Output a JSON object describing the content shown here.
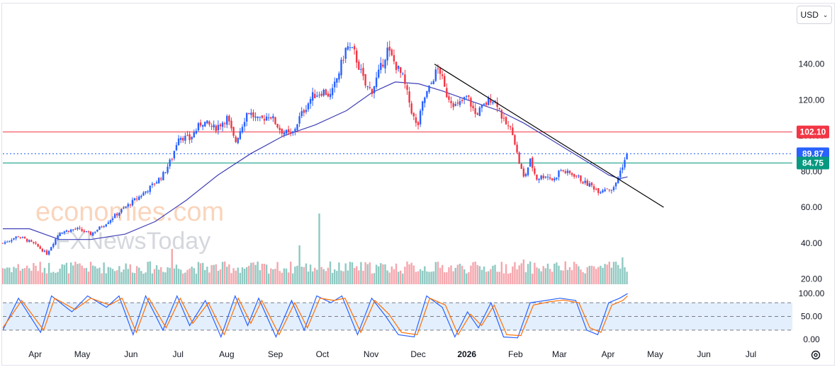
{
  "currency_selector": {
    "label": "USD"
  },
  "watermark": {
    "line1": "economies.com",
    "line2": "FXNewsToday"
  },
  "colors": {
    "up": "#2962ff",
    "down": "#f23645",
    "ma": "#3f3fb6",
    "trendline": "#000000",
    "resistance": "#f23645",
    "support": "#089981",
    "last_price": "#2962ff",
    "stoch_k": "#2962ff",
    "stoch_d": "#ff6d00",
    "stoch_band": "#e3effd",
    "volume_up": "#8fc9c2",
    "volume_down": "#f5a6ad"
  },
  "chart_data": [
    {
      "type": "candlestick",
      "title": "",
      "x_tick_labels": [
        "Apr",
        "May",
        "Jun",
        "Jul",
        "Aug",
        "Sep",
        "Oct",
        "Nov",
        "Dec",
        "2026",
        "Feb",
        "Mar",
        "Apr",
        "May",
        "Jun",
        "Jul"
      ],
      "x_range": [
        "2025-03-15",
        "2026-07-31"
      ],
      "y_tick_labels": [
        "20.00",
        "40.00",
        "60.00",
        "80.00",
        "100.00",
        "120.00",
        "140.00"
      ],
      "ylim": [
        17,
        160
      ],
      "grid": false,
      "close_path": [
        [
          "2025-03-15",
          40
        ],
        [
          "2025-03-25",
          44
        ],
        [
          "2025-04-05",
          39
        ],
        [
          "2025-04-12",
          34
        ],
        [
          "2025-04-20",
          46
        ],
        [
          "2025-05-01",
          48
        ],
        [
          "2025-05-10",
          45
        ],
        [
          "2025-05-18",
          50
        ],
        [
          "2025-05-25",
          55
        ],
        [
          "2025-06-01",
          60
        ],
        [
          "2025-06-10",
          66
        ],
        [
          "2025-06-18",
          72
        ],
        [
          "2025-06-25",
          78
        ],
        [
          "2025-07-01",
          88
        ],
        [
          "2025-07-05",
          100
        ],
        [
          "2025-07-12",
          98
        ],
        [
          "2025-07-20",
          108
        ],
        [
          "2025-07-28",
          104
        ],
        [
          "2025-08-05",
          110
        ],
        [
          "2025-08-10",
          96
        ],
        [
          "2025-08-18",
          114
        ],
        [
          "2025-08-25",
          108
        ],
        [
          "2025-09-01",
          112
        ],
        [
          "2025-09-08",
          103
        ],
        [
          "2025-09-15",
          100
        ],
        [
          "2025-09-20",
          110
        ],
        [
          "2025-09-28",
          122
        ],
        [
          "2025-10-05",
          125
        ],
        [
          "2025-10-10",
          122
        ],
        [
          "2025-10-15",
          135
        ],
        [
          "2025-10-20",
          150
        ],
        [
          "2025-10-25",
          146
        ],
        [
          "2025-11-01",
          128
        ],
        [
          "2025-11-05",
          125
        ],
        [
          "2025-11-10",
          136
        ],
        [
          "2025-11-15",
          148
        ],
        [
          "2025-11-20",
          140
        ],
        [
          "2025-11-25",
          132
        ],
        [
          "2025-11-28",
          122
        ],
        [
          "2025-12-01",
          112
        ],
        [
          "2025-12-04",
          104
        ],
        [
          "2025-12-08",
          120
        ],
        [
          "2025-12-12",
          127
        ],
        [
          "2025-12-15",
          134
        ],
        [
          "2025-12-18",
          138
        ],
        [
          "2025-12-22",
          124
        ],
        [
          "2025-12-29",
          116
        ],
        [
          "2026-01-05",
          122
        ],
        [
          "2026-01-10",
          112
        ],
        [
          "2026-01-15",
          116
        ],
        [
          "2026-01-20",
          121
        ],
        [
          "2026-01-24",
          118
        ],
        [
          "2026-01-28",
          108
        ],
        [
          "2026-02-03",
          102
        ],
        [
          "2026-02-06",
          88
        ],
        [
          "2026-02-10",
          76
        ],
        [
          "2026-02-14",
          86
        ],
        [
          "2026-02-18",
          76
        ],
        [
          "2026-02-24",
          78
        ],
        [
          "2026-03-01",
          75
        ],
        [
          "2026-03-05",
          81
        ],
        [
          "2026-03-10",
          79
        ],
        [
          "2026-03-15",
          78
        ],
        [
          "2026-03-20",
          74
        ],
        [
          "2026-03-25",
          72
        ],
        [
          "2026-03-30",
          69
        ],
        [
          "2026-04-03",
          71
        ],
        [
          "2026-04-08",
          70
        ],
        [
          "2026-04-11",
          77
        ],
        [
          "2026-04-14",
          84
        ],
        [
          "2026-04-17",
          89.87
        ]
      ],
      "moving_average": [
        [
          "2025-03-15",
          48
        ],
        [
          "2025-04-01",
          48
        ],
        [
          "2025-04-20",
          42
        ],
        [
          "2025-05-10",
          42
        ],
        [
          "2025-06-01",
          45
        ],
        [
          "2025-06-20",
          52
        ],
        [
          "2025-07-10",
          64
        ],
        [
          "2025-07-30",
          78
        ],
        [
          "2025-08-20",
          90
        ],
        [
          "2025-09-10",
          100
        ],
        [
          "2025-09-30",
          106
        ],
        [
          "2025-10-20",
          114
        ],
        [
          "2025-11-05",
          124
        ],
        [
          "2025-11-20",
          130
        ],
        [
          "2025-12-05",
          129
        ],
        [
          "2025-12-20",
          125
        ],
        [
          "2026-01-05",
          120
        ],
        [
          "2026-01-25",
          114
        ],
        [
          "2026-02-10",
          107
        ],
        [
          "2026-02-25",
          99
        ],
        [
          "2026-03-10",
          92
        ],
        [
          "2026-03-25",
          84
        ],
        [
          "2026-04-05",
          78
        ],
        [
          "2026-04-12",
          76
        ],
        [
          "2026-04-17",
          77
        ]
      ],
      "trendline": [
        [
          "2025-12-15",
          140
        ],
        [
          "2026-05-10",
          60
        ]
      ],
      "horizontal_levels": [
        {
          "label": "102.10",
          "value": 102.1,
          "color": "#f23645",
          "style": "solid"
        },
        {
          "label": "89.87",
          "value": 89.87,
          "color": "#2962ff",
          "style": "dotted"
        },
        {
          "label": "84.75",
          "value": 84.75,
          "color": "#089981",
          "style": "solid"
        }
      ],
      "volume": {
        "relative_scale": [
          0,
          1
        ],
        "typical": 0.25,
        "spikes": [
          [
            "2025-10-03",
            1.0
          ],
          [
            "2025-07-01",
            0.5
          ],
          [
            "2025-09-20",
            0.55
          ],
          [
            "2026-02-10",
            0.35
          ],
          [
            "2026-04-14",
            0.38
          ]
        ]
      }
    },
    {
      "type": "line",
      "title": "",
      "y_tick_labels": [
        "100.00",
        "50.00",
        "0.00"
      ],
      "ylim": [
        -5,
        105
      ],
      "bands": [
        20,
        50,
        80
      ],
      "series": [
        {
          "color": "#2962ff",
          "values": [
            [
              "2025-03-15",
              20
            ],
            [
              "2025-03-25",
              90
            ],
            [
              "2025-04-08",
              15
            ],
            [
              "2025-04-15",
              95
            ],
            [
              "2025-04-28",
              60
            ],
            [
              "2025-05-08",
              95
            ],
            [
              "2025-05-20",
              70
            ],
            [
              "2025-05-28",
              95
            ],
            [
              "2025-06-06",
              10
            ],
            [
              "2025-06-14",
              95
            ],
            [
              "2025-06-25",
              20
            ],
            [
              "2025-07-04",
              95
            ],
            [
              "2025-07-12",
              30
            ],
            [
              "2025-07-22",
              85
            ],
            [
              "2025-08-01",
              5
            ],
            [
              "2025-08-10",
              95
            ],
            [
              "2025-08-18",
              30
            ],
            [
              "2025-08-25",
              90
            ],
            [
              "2025-09-05",
              5
            ],
            [
              "2025-09-15",
              85
            ],
            [
              "2025-09-23",
              20
            ],
            [
              "2025-10-01",
              95
            ],
            [
              "2025-10-10",
              80
            ],
            [
              "2025-10-17",
              95
            ],
            [
              "2025-10-27",
              10
            ],
            [
              "2025-11-05",
              90
            ],
            [
              "2025-11-14",
              50
            ],
            [
              "2025-11-22",
              10
            ],
            [
              "2025-12-02",
              5
            ],
            [
              "2025-12-10",
              95
            ],
            [
              "2025-12-20",
              70
            ],
            [
              "2025-12-28",
              5
            ],
            [
              "2026-01-05",
              60
            ],
            [
              "2026-01-12",
              25
            ],
            [
              "2026-01-20",
              80
            ],
            [
              "2026-01-28",
              5
            ],
            [
              "2026-02-06",
              3
            ],
            [
              "2026-02-14",
              80
            ],
            [
              "2026-02-24",
              85
            ],
            [
              "2026-03-05",
              90
            ],
            [
              "2026-03-15",
              85
            ],
            [
              "2026-03-22",
              20
            ],
            [
              "2026-03-29",
              10
            ],
            [
              "2026-04-05",
              80
            ],
            [
              "2026-04-12",
              90
            ],
            [
              "2026-04-17",
              100
            ]
          ]
        },
        {
          "color": "#ff6d00",
          "values": [
            [
              "2025-03-15",
              25
            ],
            [
              "2025-03-27",
              85
            ],
            [
              "2025-04-10",
              20
            ],
            [
              "2025-04-17",
              90
            ],
            [
              "2025-04-30",
              65
            ],
            [
              "2025-05-10",
              90
            ],
            [
              "2025-05-22",
              75
            ],
            [
              "2025-05-30",
              90
            ],
            [
              "2025-06-08",
              15
            ],
            [
              "2025-06-16",
              90
            ],
            [
              "2025-06-27",
              25
            ],
            [
              "2025-07-06",
              90
            ],
            [
              "2025-07-14",
              35
            ],
            [
              "2025-07-24",
              80
            ],
            [
              "2025-08-03",
              10
            ],
            [
              "2025-08-12",
              90
            ],
            [
              "2025-08-20",
              35
            ],
            [
              "2025-08-27",
              85
            ],
            [
              "2025-09-07",
              10
            ],
            [
              "2025-09-17",
              80
            ],
            [
              "2025-09-25",
              25
            ],
            [
              "2025-10-03",
              90
            ],
            [
              "2025-10-12",
              85
            ],
            [
              "2025-10-19",
              90
            ],
            [
              "2025-10-29",
              15
            ],
            [
              "2025-11-07",
              85
            ],
            [
              "2025-11-16",
              55
            ],
            [
              "2025-11-24",
              15
            ],
            [
              "2025-12-04",
              10
            ],
            [
              "2025-12-12",
              90
            ],
            [
              "2025-12-22",
              75
            ],
            [
              "2025-12-30",
              10
            ],
            [
              "2026-01-07",
              55
            ],
            [
              "2026-01-14",
              30
            ],
            [
              "2026-01-22",
              75
            ],
            [
              "2026-01-30",
              10
            ],
            [
              "2026-02-08",
              8
            ],
            [
              "2026-02-16",
              75
            ],
            [
              "2026-02-26",
              82
            ],
            [
              "2026-03-07",
              86
            ],
            [
              "2026-03-17",
              80
            ],
            [
              "2026-03-24",
              25
            ],
            [
              "2026-03-31",
              15
            ],
            [
              "2026-04-07",
              75
            ],
            [
              "2026-04-14",
              85
            ],
            [
              "2026-04-17",
              95
            ]
          ]
        }
      ]
    }
  ]
}
